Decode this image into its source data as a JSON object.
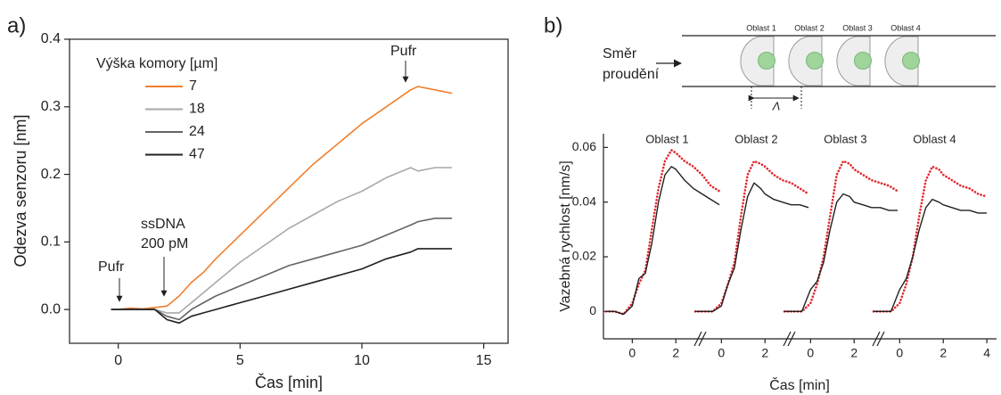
{
  "chart_data": [
    {
      "type": "line",
      "label": "a)",
      "xlabel": "Čas [min]",
      "ylabel": "Odezva senzoru [nm]",
      "xlim": [
        -2,
        16
      ],
      "xticks": [
        0,
        5,
        10,
        15
      ],
      "ylim": [
        -0.05,
        0.4
      ],
      "yticks": [
        {
          "value": 0,
          "label": "0.0"
        },
        0.1,
        0.2,
        0.3,
        0.4
      ],
      "legend_title": "Výška komory [µm]",
      "annotations": [
        "Pufr",
        "ssDNA",
        "200 pM",
        "Pufr"
      ],
      "x": [
        -0.3,
        0,
        0.5,
        1,
        1.5,
        2,
        2.5,
        3,
        3.5,
        4,
        5,
        6,
        7,
        8,
        9,
        10,
        11,
        12,
        12.3,
        13,
        13.7
      ],
      "series": [
        {
          "name": "7",
          "color": "#f07f2e",
          "values": [
            0,
            0,
            0.002,
            0.001,
            0.003,
            0.005,
            0.02,
            0.04,
            0.055,
            0.075,
            0.11,
            0.145,
            0.18,
            0.215,
            0.245,
            0.275,
            0.3,
            0.325,
            0.33,
            0.325,
            0.32
          ]
        },
        {
          "name": "18",
          "color": "#a7a9ac",
          "values": [
            0,
            0,
            0,
            0,
            0,
            -0.005,
            -0.005,
            0.01,
            0.025,
            0.04,
            0.07,
            0.095,
            0.12,
            0.14,
            0.16,
            0.175,
            0.195,
            0.21,
            0.205,
            0.21,
            0.21
          ]
        },
        {
          "name": "24",
          "color": "#636466",
          "values": [
            0,
            0,
            0,
            0,
            0,
            -0.01,
            -0.015,
            0,
            0.01,
            0.02,
            0.035,
            0.05,
            0.065,
            0.075,
            0.085,
            0.095,
            0.11,
            0.125,
            0.13,
            0.135,
            0.135
          ]
        },
        {
          "name": "47",
          "color": "#231f20",
          "values": [
            0,
            0,
            0,
            0,
            0,
            -0.015,
            -0.02,
            -0.01,
            -0.005,
            0,
            0.01,
            0.02,
            0.03,
            0.04,
            0.05,
            0.06,
            0.075,
            0.085,
            0.09,
            0.09,
            0.09
          ]
        }
      ]
    },
    {
      "type": "segmented-line",
      "label": "b)",
      "xlabel": "Čas [min]",
      "ylabel": "Vazebná rychlost [nm/s]",
      "diagram": {
        "flow_label": [
          "Směr",
          "proudění"
        ],
        "regions": [
          "Oblast 1",
          "Oblast 2",
          "Oblast 3",
          "Oblast 4"
        ],
        "period": "Λ"
      },
      "ylim": [
        -0.01,
        0.065
      ],
      "yticks": [
        0,
        0.02,
        0.04,
        0.06
      ],
      "segments": [
        {
          "title": "Oblast 1",
          "xlim": [
            -1.2,
            4.2
          ],
          "xticks": [
            0,
            2
          ],
          "x": [
            -1.2,
            -0.8,
            -0.4,
            0,
            0.3,
            0.6,
            0.9,
            1.2,
            1.5,
            1.8,
            2.0,
            2.4,
            2.8,
            3.2,
            3.6,
            4.0
          ],
          "series": [
            {
              "color": "#e0282e",
              "style": "dotted",
              "values": [
                0,
                0,
                -0.001,
                0.003,
                0.01,
                0.015,
                0.03,
                0.045,
                0.055,
                0.059,
                0.058,
                0.055,
                0.053,
                0.05,
                0.046,
                0.044
              ]
            },
            {
              "color": "#231f20",
              "style": "solid",
              "values": [
                0,
                0,
                -0.001,
                0.002,
                0.012,
                0.014,
                0.025,
                0.04,
                0.05,
                0.053,
                0.052,
                0.048,
                0.045,
                0.043,
                0.041,
                0.039
              ]
            }
          ]
        },
        {
          "title": "Oblast 2",
          "xlim": [
            -1.2,
            4.2
          ],
          "xticks": [
            0,
            2
          ],
          "x": [
            -1.2,
            -0.8,
            -0.4,
            0,
            0.3,
            0.6,
            0.9,
            1.2,
            1.5,
            1.8,
            2.0,
            2.4,
            2.8,
            3.2,
            3.6,
            4.0
          ],
          "series": [
            {
              "color": "#e0282e",
              "style": "dotted",
              "values": [
                0,
                0,
                0,
                0.003,
                0.01,
                0.018,
                0.035,
                0.05,
                0.055,
                0.054,
                0.053,
                0.05,
                0.048,
                0.047,
                0.045,
                0.043
              ]
            },
            {
              "color": "#231f20",
              "style": "solid",
              "values": [
                0,
                0,
                0,
                0.002,
                0.01,
                0.016,
                0.03,
                0.042,
                0.047,
                0.045,
                0.043,
                0.041,
                0.04,
                0.039,
                0.039,
                0.038
              ]
            }
          ]
        },
        {
          "title": "Oblast 3",
          "xlim": [
            -1.2,
            4.2
          ],
          "xticks": [
            0,
            2
          ],
          "x": [
            -1.2,
            -0.8,
            -0.4,
            0,
            0.3,
            0.6,
            0.9,
            1.2,
            1.5,
            1.8,
            2.0,
            2.4,
            2.8,
            3.2,
            3.6,
            4.0
          ],
          "series": [
            {
              "color": "#e0282e",
              "style": "dotted",
              "values": [
                0,
                0,
                0,
                0.003,
                0.01,
                0.02,
                0.035,
                0.05,
                0.055,
                0.054,
                0.052,
                0.05,
                0.048,
                0.047,
                0.046,
                0.044
              ]
            },
            {
              "color": "#231f20",
              "style": "solid",
              "values": [
                0,
                0,
                0,
                0.008,
                0.011,
                0.018,
                0.03,
                0.04,
                0.043,
                0.042,
                0.04,
                0.039,
                0.038,
                0.038,
                0.037,
                0.037
              ]
            }
          ]
        },
        {
          "title": "Oblast 4",
          "xlim": [
            -1.2,
            4.2
          ],
          "xticks": [
            0,
            2,
            4
          ],
          "x": [
            -1.2,
            -0.8,
            -0.4,
            0,
            0.3,
            0.6,
            0.9,
            1.2,
            1.5,
            1.8,
            2.0,
            2.4,
            2.8,
            3.2,
            3.6,
            4.0
          ],
          "series": [
            {
              "color": "#e0282e",
              "style": "dotted",
              "values": [
                0,
                0,
                0,
                0.003,
                0.01,
                0.02,
                0.035,
                0.048,
                0.053,
                0.052,
                0.05,
                0.048,
                0.046,
                0.045,
                0.043,
                0.042
              ]
            },
            {
              "color": "#231f20",
              "style": "solid",
              "values": [
                0,
                0,
                0,
                0.008,
                0.012,
                0.02,
                0.03,
                0.038,
                0.041,
                0.04,
                0.039,
                0.038,
                0.037,
                0.037,
                0.036,
                0.036
              ]
            }
          ]
        }
      ]
    }
  ]
}
